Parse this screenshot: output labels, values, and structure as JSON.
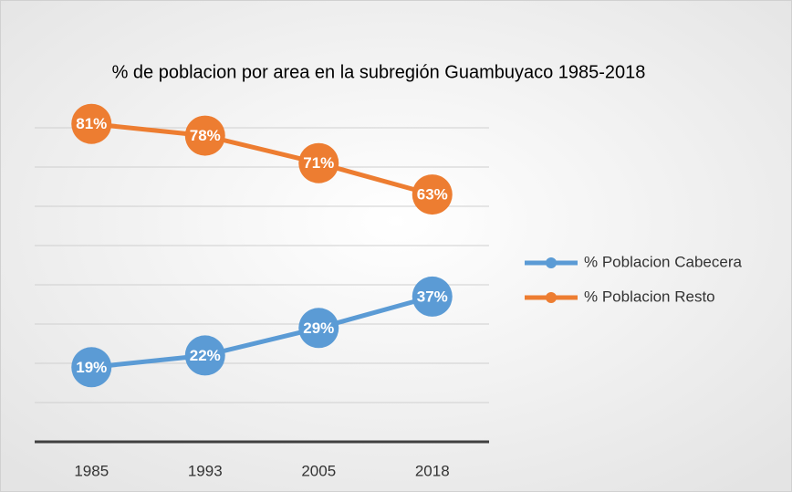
{
  "chart_data": {
    "type": "line",
    "title": "% de poblacion por area en la subregión Guambuyaco 1985-2018",
    "categories": [
      "1985",
      "1993",
      "2005",
      "2018"
    ],
    "series": [
      {
        "name": "% Poblacion Cabecera",
        "color": "#5b9bd5",
        "values": [
          19,
          22,
          29,
          37
        ],
        "value_labels": [
          "19%",
          "22%",
          "29%",
          "37%"
        ]
      },
      {
        "name": "% Poblacion Resto",
        "color": "#ed7d31",
        "values": [
          81,
          78,
          71,
          63
        ],
        "value_labels": [
          "81%",
          "78%",
          "71%",
          "63%"
        ]
      }
    ],
    "ylim": [
      0,
      90
    ],
    "yticks": [
      0,
      10,
      20,
      30,
      40,
      50,
      60,
      70,
      80
    ],
    "grid": true,
    "legend": "right"
  }
}
